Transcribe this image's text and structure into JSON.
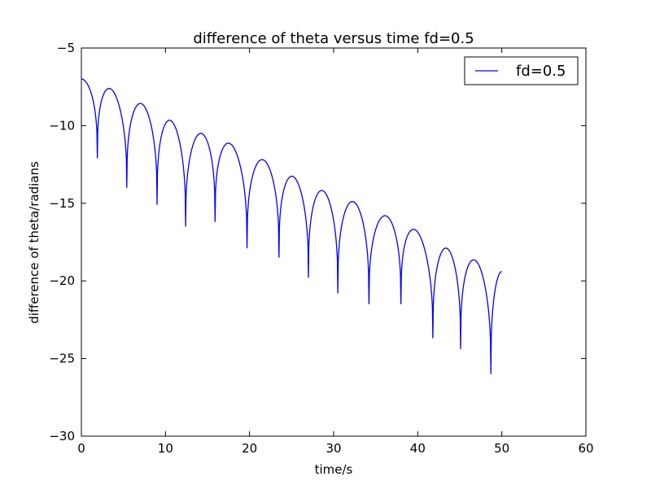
{
  "chart_data": {
    "type": "line",
    "title": "difference of theta versus time  fd=0.5",
    "xlabel": "time/s",
    "ylabel": "difference of theta/radians",
    "xlim": [
      0,
      60
    ],
    "ylim": [
      -30,
      -5
    ],
    "xticks": [
      "0",
      "10",
      "20",
      "30",
      "40",
      "50",
      "60"
    ],
    "yticks": [
      "−5",
      "−10",
      "−15",
      "−20",
      "−25",
      "−30"
    ],
    "grid": false,
    "legend_position": "top-right",
    "series": [
      {
        "name": "fd=0.5",
        "color": "#0000ff",
        "x": [
          0,
          3.2,
          6.8,
          10.4,
          14.0,
          17.6,
          21.2,
          24.8,
          28.4,
          32.0,
          35.6,
          39.2,
          42.8,
          46.4,
          50.0
        ],
        "y": [
          -7.0,
          -7.7,
          -8.6,
          -9.7,
          -10.5,
          -11.2,
          -12.2,
          -13.3,
          -14.2,
          -14.9,
          -15.8,
          -16.8,
          -17.9,
          -18.7,
          -19.4
        ],
        "dips": [
          {
            "x": 1.9,
            "y": -12.1
          },
          {
            "x": 5.4,
            "y": -14.0
          },
          {
            "x": 9.0,
            "y": -15.1
          },
          {
            "x": 12.4,
            "y": -16.5
          },
          {
            "x": 15.9,
            "y": -16.2
          },
          {
            "x": 19.7,
            "y": -17.9
          },
          {
            "x": 23.5,
            "y": -18.5
          },
          {
            "x": 27.0,
            "y": -19.8
          },
          {
            "x": 30.5,
            "y": -20.8
          },
          {
            "x": 34.2,
            "y": -21.5
          },
          {
            "x": 38.0,
            "y": -21.5
          },
          {
            "x": 41.8,
            "y": -23.7
          },
          {
            "x": 45.1,
            "y": -24.4
          },
          {
            "x": 48.7,
            "y": -26.0
          }
        ]
      }
    ]
  }
}
